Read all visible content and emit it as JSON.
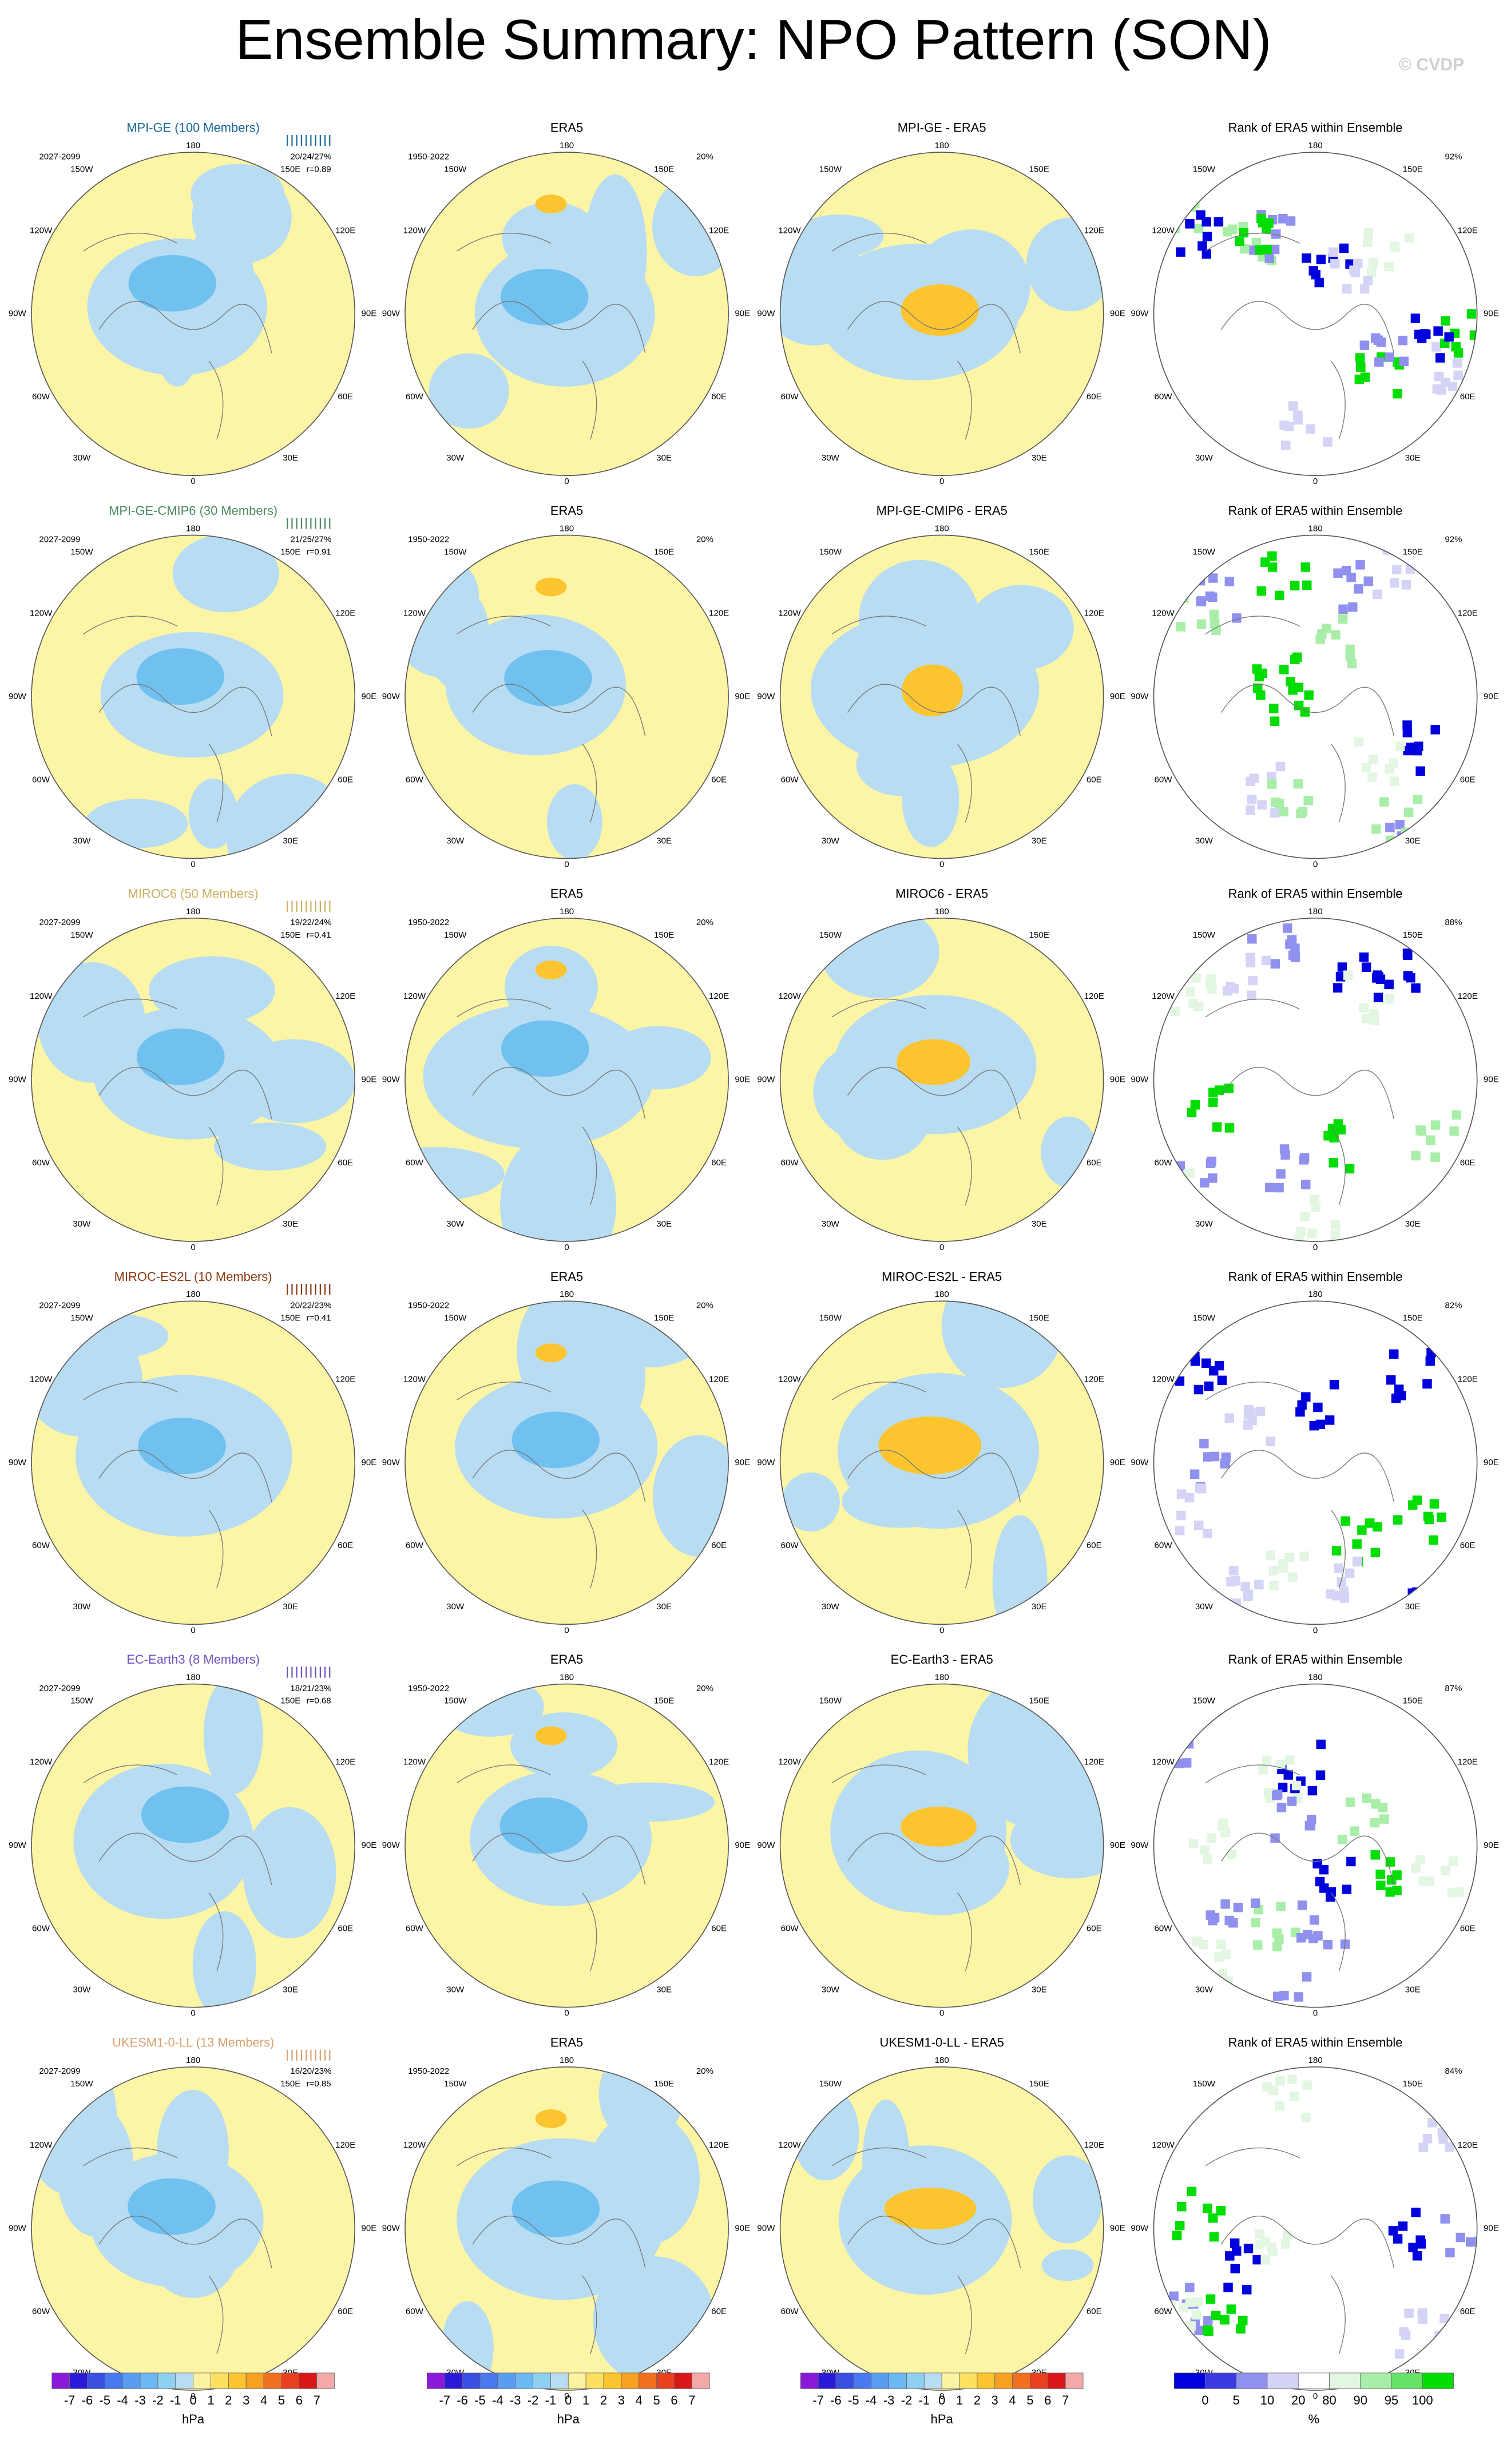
{
  "title": "Ensemble Summary: NPO Pattern (SON)",
  "watermark": "© CVDP",
  "longitude_labels": [
    "180",
    "150E",
    "120E",
    "90E",
    "60E",
    "30E",
    "0",
    "30W",
    "60W",
    "90W",
    "120W",
    "150W"
  ],
  "rows": [
    {
      "model": {
        "title": "MPI-GE (100 Members)",
        "color": "#1a6a9a",
        "period": "2027-2099",
        "stats": "20/24/27%",
        "r": "r=0.89"
      },
      "obs": {
        "title": "ERA5",
        "period": "1950-2022",
        "pct": "20%"
      },
      "diff": {
        "title": "MPI-GE - ERA5"
      },
      "rank": {
        "title": "Rank of ERA5 within Ensemble",
        "pct": "92%"
      }
    },
    {
      "model": {
        "title": "MPI-GE-CMIP6 (30 Members)",
        "color": "#4a8a60",
        "period": "2027-2099",
        "stats": "21/25/27%",
        "r": "r=0.91"
      },
      "obs": {
        "title": "ERA5",
        "period": "1950-2022",
        "pct": "20%"
      },
      "diff": {
        "title": "MPI-GE-CMIP6 - ERA5"
      },
      "rank": {
        "title": "Rank of ERA5 within Ensemble",
        "pct": "92%"
      }
    },
    {
      "model": {
        "title": "MIROC6 (50 Members)",
        "color": "#c8b060",
        "period": "2027-2099",
        "stats": "19/22/24%",
        "r": "r=0.41"
      },
      "obs": {
        "title": "ERA5",
        "period": "1950-2022",
        "pct": "20%"
      },
      "diff": {
        "title": "MIROC6 - ERA5"
      },
      "rank": {
        "title": "Rank of ERA5 within Ensemble",
        "pct": "88%"
      }
    },
    {
      "model": {
        "title": "MIROC-ES2L (10 Members)",
        "color": "#8a3a10",
        "period": "2027-2099",
        "stats": "20/22/23%",
        "r": "r=0.41"
      },
      "obs": {
        "title": "ERA5",
        "period": "1950-2022",
        "pct": "20%"
      },
      "diff": {
        "title": "MIROC-ES2L - ERA5"
      },
      "rank": {
        "title": "Rank of ERA5 within Ensemble",
        "pct": "82%"
      }
    },
    {
      "model": {
        "title": "EC-Earth3 (8 Members)",
        "color": "#7050c0",
        "period": "2027-2099",
        "stats": "18/21/23%",
        "r": "r=0.68"
      },
      "obs": {
        "title": "ERA5",
        "period": "1950-2022",
        "pct": "20%"
      },
      "diff": {
        "title": "EC-Earth3 - ERA5"
      },
      "rank": {
        "title": "Rank of ERA5 within Ensemble",
        "pct": "87%"
      }
    },
    {
      "model": {
        "title": "UKESM1-0-LL (13 Members)",
        "color": "#d8a070",
        "period": "2027-2099",
        "stats": "16/20/23%",
        "r": "r=0.85"
      },
      "obs": {
        "title": "ERA5",
        "period": "1950-2022",
        "pct": "20%"
      },
      "diff": {
        "title": "UKESM1-0-LL - ERA5"
      },
      "rank": {
        "title": "Rank of ERA5 within Ensemble",
        "pct": "84%"
      }
    }
  ],
  "colorbars": {
    "hpa": {
      "ticks": [
        -7,
        -6,
        -5,
        -4,
        -3,
        -2,
        -1,
        0,
        1,
        2,
        3,
        4,
        5,
        6,
        7
      ],
      "unit": "hPa",
      "colors": [
        "#8a1ad8",
        "#2a1ad8",
        "#3a50e0",
        "#4a78ee",
        "#5a9cf0",
        "#6cb8f2",
        "#8ecff2",
        "#b8ddf2",
        "#fdf2a0",
        "#fde060",
        "#fcc530",
        "#f9a020",
        "#f07020",
        "#e84020",
        "#d81818",
        "#f4a8a8"
      ]
    },
    "percent": {
      "ticks": [
        0,
        5,
        10,
        20,
        80,
        90,
        95,
        100
      ],
      "unit": "%",
      "colors": [
        "#0000dd",
        "#3a3ae2",
        "#9090ee",
        "#d4d4f6",
        "#ffffff",
        "#e2f6e2",
        "#a8eea8",
        "#66e266",
        "#00dd00"
      ]
    }
  }
}
